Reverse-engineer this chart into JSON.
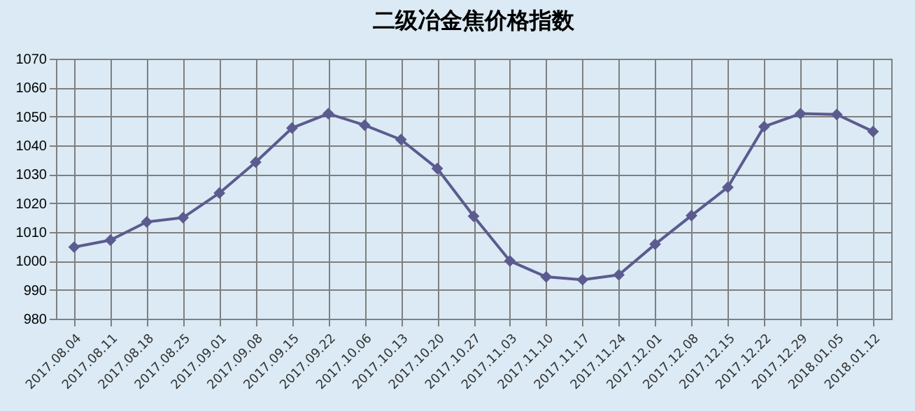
{
  "chart_data": {
    "type": "line",
    "title": "二级冶金焦价格指数",
    "categories": [
      "2017.08.04",
      "2017.08.11",
      "2017.08.18",
      "2017.08.25",
      "2017.09.01",
      "2017.09.08",
      "2017.09.15",
      "2017.09.22",
      "2017.10.06",
      "2017.10.13",
      "2017.10.20",
      "2017.10.27",
      "2017.11.03",
      "2017.11.10",
      "2017.11.17",
      "2017.11.24",
      "2017.12.01",
      "2017.12.08",
      "2017.12.15",
      "2017.12.22",
      "2017.12.29",
      "2018.01.05",
      "2018.01.12"
    ],
    "series": [
      {
        "color": "#5b5b8f",
        "values": [
          1004.8,
          1007.2,
          1013.5,
          1015,
          1023.5,
          1034.2,
          1046,
          1051,
          1047,
          1042,
          1032,
          1015.5,
          1000,
          994.5,
          993.5,
          995.2,
          1005.8,
          1015.7,
          1025.5,
          1046.5,
          1051,
          1050.7,
          1044.8
        ]
      }
    ],
    "ylim": [
      980,
      1070
    ],
    "yticks": [
      980,
      990,
      1000,
      1010,
      1020,
      1030,
      1040,
      1050,
      1060,
      1070
    ],
    "grid": true,
    "marker": "diamond",
    "line_style": "solid",
    "legend": false
  }
}
